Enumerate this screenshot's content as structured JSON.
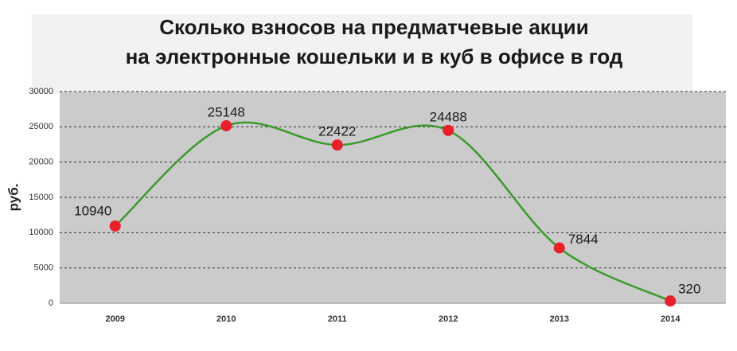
{
  "chart_data": {
    "type": "line",
    "title": [
      "Сколько взносов на предматчевые акции",
      "на электронные кошельки и в куб в офисе в год"
    ],
    "y_label": "руб.",
    "categories": [
      "2009",
      "2010",
      "2011",
      "2012",
      "2013",
      "2014"
    ],
    "values": [
      10940,
      25148,
      22422,
      24488,
      7844,
      320
    ],
    "color": "#3c9a2c",
    "marker_color": "#e8202a",
    "ylim": [
      0,
      30000
    ],
    "yticks": [
      0,
      5000,
      10000,
      15000,
      20000,
      25000,
      30000
    ],
    "grid": true
  }
}
